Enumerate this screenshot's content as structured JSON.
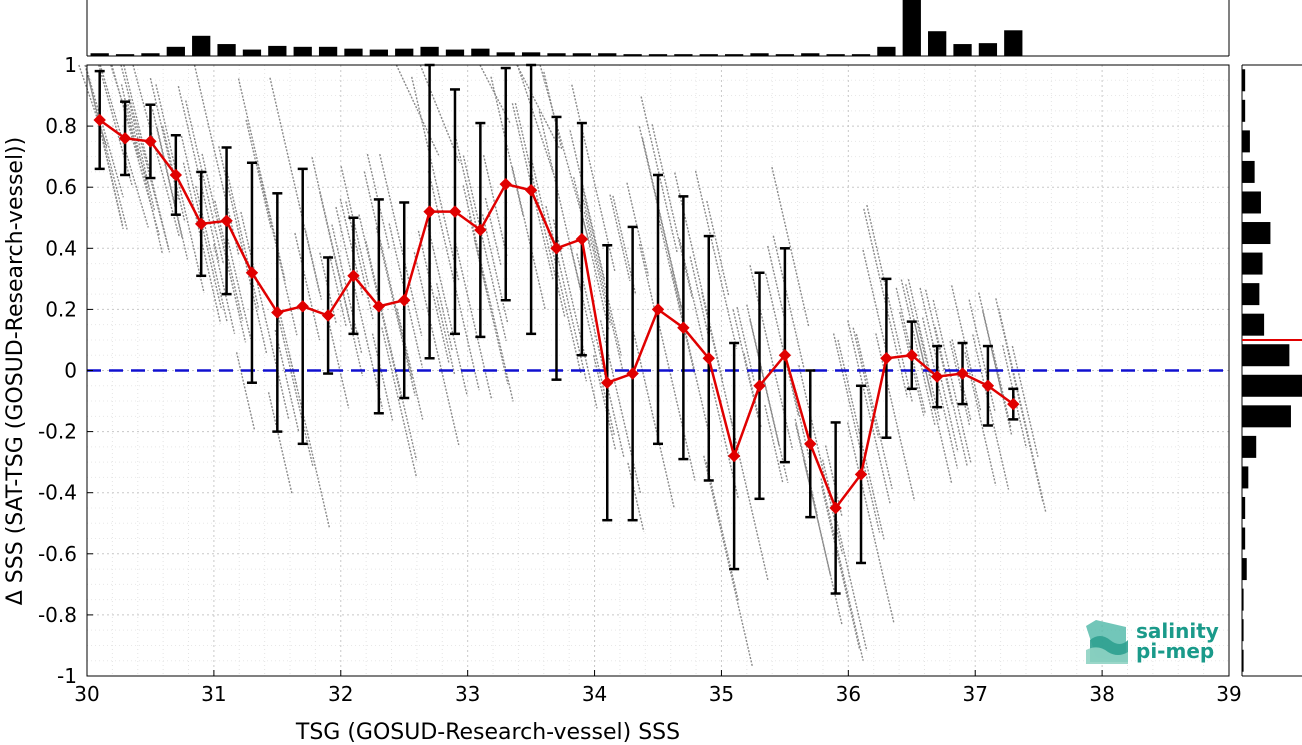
{
  "chart_data": {
    "type": "line",
    "xlabel": "TSG (GOSUD-Research-vessel) SSS",
    "ylabel": "Δ SSS (SAT-TSG (GOSUD-Research-vessel))",
    "xlim": [
      30,
      39
    ],
    "ylim": [
      -1,
      1
    ],
    "x_ticks": [
      "30",
      "31",
      "32",
      "33",
      "34",
      "35",
      "36",
      "37",
      "38",
      "39"
    ],
    "y_ticks": [
      "1",
      "0.8",
      "0.6",
      "0.4",
      "0.2",
      "0",
      "-0.2",
      "-0.4",
      "-0.6",
      "-0.8",
      "-1"
    ],
    "grid": true,
    "zero_line": 0,
    "series": [
      {
        "color": "#e00000",
        "marker": "diamond",
        "x": [
          30.1,
          30.3,
          30.5,
          30.7,
          30.9,
          31.1,
          31.3,
          31.5,
          31.7,
          31.9,
          32.1,
          32.3,
          32.5,
          32.7,
          32.9,
          33.1,
          33.3,
          33.5,
          33.7,
          33.9,
          34.1,
          34.3,
          34.5,
          34.7,
          34.9,
          35.1,
          35.3,
          35.5,
          35.7,
          35.9,
          36.1,
          36.3,
          36.5,
          36.7,
          36.9,
          37.1,
          37.3
        ],
        "y": [
          0.82,
          0.76,
          0.75,
          0.64,
          0.48,
          0.49,
          0.32,
          0.19,
          0.21,
          0.18,
          0.31,
          0.21,
          0.23,
          0.52,
          0.52,
          0.46,
          0.61,
          0.59,
          0.4,
          0.43,
          -0.04,
          -0.01,
          0.2,
          0.14,
          0.04,
          -0.28,
          -0.05,
          0.05,
          -0.24,
          -0.45,
          -0.34,
          0.04,
          0.05,
          -0.02,
          -0.01,
          -0.05,
          -0.11
        ],
        "err": [
          0.16,
          0.12,
          0.12,
          0.13,
          0.17,
          0.24,
          0.36,
          0.39,
          0.45,
          0.19,
          0.19,
          0.35,
          0.32,
          0.48,
          0.4,
          0.35,
          0.38,
          0.47,
          0.43,
          0.38,
          0.45,
          0.48,
          0.44,
          0.43,
          0.4,
          0.37,
          0.37,
          0.35,
          0.24,
          0.28,
          0.29,
          0.26,
          0.11,
          0.1,
          0.1,
          0.13,
          0.05
        ]
      }
    ],
    "histogram_x": {
      "bin_centers": [
        30.1,
        30.3,
        30.5,
        30.7,
        30.9,
        31.1,
        31.3,
        31.5,
        31.7,
        31.9,
        32.1,
        32.3,
        32.5,
        32.7,
        32.9,
        33.1,
        33.3,
        33.5,
        33.7,
        33.9,
        34.1,
        34.3,
        34.5,
        34.7,
        34.9,
        35.1,
        35.3,
        35.5,
        35.7,
        35.9,
        36.1,
        36.3,
        36.5,
        36.7,
        36.9,
        37.1,
        37.3
      ],
      "counts": [
        3,
        2,
        3,
        10,
        22,
        13,
        7,
        11,
        10,
        10,
        8,
        7,
        8,
        10,
        7,
        8,
        4,
        4,
        3,
        3,
        3,
        2,
        2,
        2,
        2,
        2,
        3,
        2,
        3,
        2,
        2,
        10,
        61,
        27,
        13,
        14,
        28
      ]
    },
    "histogram_y": {
      "bin_centers": [
        0.95,
        0.85,
        0.75,
        0.65,
        0.55,
        0.45,
        0.35,
        0.25,
        0.15,
        0.05,
        -0.05,
        -0.15,
        -0.25,
        -0.35,
        -0.45,
        -0.55,
        -0.65,
        -0.75,
        -0.85,
        -0.95
      ],
      "counts": [
        2,
        2,
        5,
        8,
        12,
        18,
        13,
        11,
        14,
        30,
        38,
        31,
        9,
        4,
        2,
        2,
        3,
        1,
        1,
        1
      ],
      "mean_line": 0.1
    },
    "logo": {
      "line1": "salinity",
      "line2": "pi-mep"
    }
  }
}
